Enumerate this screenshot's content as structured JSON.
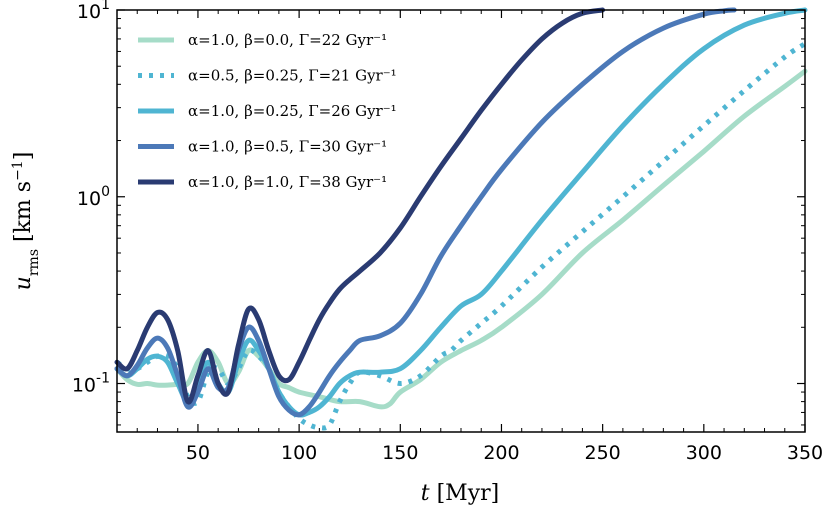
{
  "chart_data": {
    "type": "line",
    "xlabel": "t [Myr]",
    "ylabel": "u_rms [km s^-1]",
    "xlim": [
      10,
      350
    ],
    "ylim": [
      0.055,
      10
    ],
    "yscale": "log",
    "x_ticks": [
      50,
      100,
      150,
      200,
      250,
      300,
      350
    ],
    "y_ticks": [
      {
        "value": 0.1,
        "base": "10",
        "exp": "-1"
      },
      {
        "value": 1,
        "base": "10",
        "exp": "0"
      },
      {
        "value": 10,
        "base": "10",
        "exp": "1"
      }
    ],
    "legend_position": "top-left",
    "series": [
      {
        "name": "α=1.0, β=0.0, Γ=22 Gyr⁻¹",
        "color": "#a6dcc8",
        "style": "solid",
        "x": [
          10,
          15,
          20,
          25,
          30,
          35,
          40,
          45,
          50,
          55,
          60,
          65,
          70,
          75,
          80,
          85,
          90,
          95,
          100,
          110,
          120,
          130,
          140,
          145,
          150,
          160,
          170,
          180,
          190,
          200,
          220,
          240,
          260,
          280,
          300,
          320,
          340,
          350
        ],
        "values": [
          0.12,
          0.105,
          0.099,
          0.1,
          0.098,
          0.098,
          0.099,
          0.1,
          0.13,
          0.15,
          0.13,
          0.1,
          0.115,
          0.15,
          0.14,
          0.12,
          0.1,
          0.095,
          0.09,
          0.085,
          0.08,
          0.08,
          0.075,
          0.078,
          0.09,
          0.105,
          0.13,
          0.15,
          0.17,
          0.2,
          0.3,
          0.5,
          0.75,
          1.15,
          1.75,
          2.7,
          3.9,
          4.7
        ]
      },
      {
        "name": "α=0.5, β=0.25, Γ=21 Gyr⁻¹",
        "color": "#4fb5d2",
        "style": "dotted",
        "x": [
          10,
          15,
          20,
          25,
          30,
          35,
          40,
          45,
          50,
          55,
          60,
          65,
          70,
          75,
          80,
          85,
          90,
          95,
          100,
          105,
          110,
          115,
          120,
          125,
          130,
          140,
          150,
          160,
          170,
          175,
          180,
          190,
          200,
          220,
          240,
          260,
          280,
          300,
          320,
          340,
          350
        ],
        "values": [
          0.13,
          0.12,
          0.12,
          0.13,
          0.14,
          0.14,
          0.12,
          0.085,
          0.08,
          0.115,
          0.12,
          0.1,
          0.12,
          0.15,
          0.14,
          0.12,
          0.09,
          0.075,
          0.065,
          0.06,
          0.058,
          0.06,
          0.08,
          0.1,
          0.115,
          0.11,
          0.1,
          0.11,
          0.14,
          0.15,
          0.17,
          0.21,
          0.26,
          0.42,
          0.65,
          1.0,
          1.55,
          2.4,
          3.7,
          5.6,
          6.6
        ]
      },
      {
        "name": "α=1.0, β=0.25, Γ=26 Gyr⁻¹",
        "color": "#4fb5d2",
        "style": "solid",
        "x": [
          10,
          15,
          20,
          25,
          30,
          35,
          40,
          45,
          50,
          55,
          60,
          65,
          70,
          75,
          80,
          85,
          90,
          95,
          100,
          105,
          110,
          115,
          120,
          125,
          130,
          140,
          150,
          160,
          170,
          180,
          190,
          200,
          220,
          240,
          260,
          280,
          300,
          320,
          340,
          350
        ],
        "values": [
          0.12,
          0.11,
          0.12,
          0.135,
          0.14,
          0.13,
          0.1,
          0.08,
          0.1,
          0.13,
          0.1,
          0.09,
          0.13,
          0.17,
          0.15,
          0.12,
          0.09,
          0.075,
          0.068,
          0.07,
          0.075,
          0.085,
          0.1,
          0.11,
          0.115,
          0.115,
          0.12,
          0.15,
          0.2,
          0.26,
          0.3,
          0.4,
          0.75,
          1.35,
          2.4,
          4.0,
          6.2,
          8.3,
          9.6,
          10.0
        ]
      },
      {
        "name": "α=1.0, β=0.5, Γ=30 Gyr⁻¹",
        "color": "#4c79b8",
        "style": "solid",
        "x": [
          10,
          15,
          20,
          25,
          30,
          35,
          40,
          45,
          50,
          55,
          60,
          65,
          70,
          75,
          80,
          85,
          90,
          95,
          100,
          105,
          110,
          115,
          120,
          125,
          130,
          140,
          150,
          160,
          170,
          180,
          190,
          200,
          220,
          240,
          260,
          280,
          300,
          310,
          315
        ],
        "values": [
          0.12,
          0.11,
          0.125,
          0.155,
          0.175,
          0.155,
          0.11,
          0.075,
          0.09,
          0.12,
          0.095,
          0.095,
          0.15,
          0.2,
          0.17,
          0.12,
          0.085,
          0.072,
          0.068,
          0.075,
          0.09,
          0.11,
          0.13,
          0.15,
          0.17,
          0.18,
          0.21,
          0.3,
          0.48,
          0.7,
          1.0,
          1.4,
          2.5,
          4.0,
          6.0,
          8.0,
          9.5,
          9.9,
          10.0
        ]
      },
      {
        "name": "α=1.0, β=1.0, Γ=38 Gyr⁻¹",
        "color": "#2a3b72",
        "style": "solid",
        "x": [
          10,
          15,
          20,
          25,
          30,
          35,
          40,
          45,
          50,
          55,
          60,
          65,
          70,
          75,
          80,
          85,
          90,
          95,
          100,
          105,
          110,
          115,
          120,
          125,
          130,
          140,
          150,
          160,
          170,
          180,
          190,
          200,
          210,
          220,
          230,
          240,
          250
        ],
        "values": [
          0.13,
          0.12,
          0.15,
          0.2,
          0.24,
          0.22,
          0.15,
          0.08,
          0.11,
          0.15,
          0.1,
          0.09,
          0.16,
          0.25,
          0.22,
          0.15,
          0.11,
          0.105,
          0.13,
          0.17,
          0.22,
          0.27,
          0.32,
          0.36,
          0.4,
          0.5,
          0.68,
          1.0,
          1.45,
          2.05,
          2.9,
          4.0,
          5.4,
          7.0,
          8.5,
          9.6,
          10.0
        ]
      }
    ]
  }
}
